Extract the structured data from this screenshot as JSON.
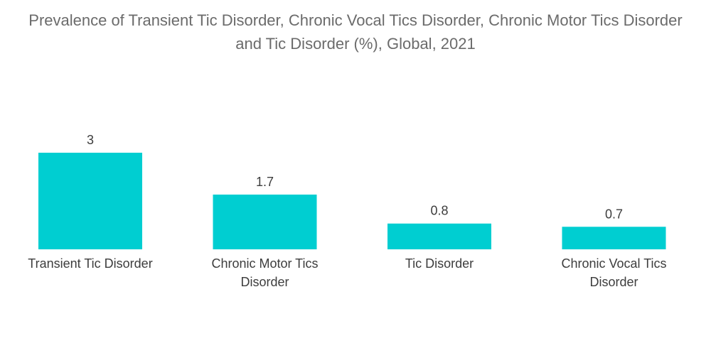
{
  "title": "Prevalence of Transient Tic Disorder, Chronic Vocal Tics Disorder, Chronic Motor Tics Disorder and Tic Disorder (%), Global, 2021",
  "colors": {
    "bar": "#00ced1",
    "title_text": "#6b6b6b",
    "label_text": "#3d3d3d"
  },
  "chart_data": {
    "type": "bar",
    "title": "Prevalence of Transient Tic Disorder, Chronic Vocal Tics Disorder, Chronic Motor Tics Disorder and Tic Disorder (%), Global, 2021",
    "categories": [
      "Transient Tic Disorder",
      "Chronic Motor Tics Disorder",
      "Tic Disorder",
      "Chronic Vocal Tics Disorder"
    ],
    "values": [
      3,
      1.7,
      0.8,
      0.7
    ],
    "value_labels": [
      "3",
      "1.7",
      "0.8",
      "0.7"
    ],
    "xlabel": "",
    "ylabel": "",
    "ylim": [
      0,
      3
    ],
    "grid": false,
    "legend": "none"
  }
}
